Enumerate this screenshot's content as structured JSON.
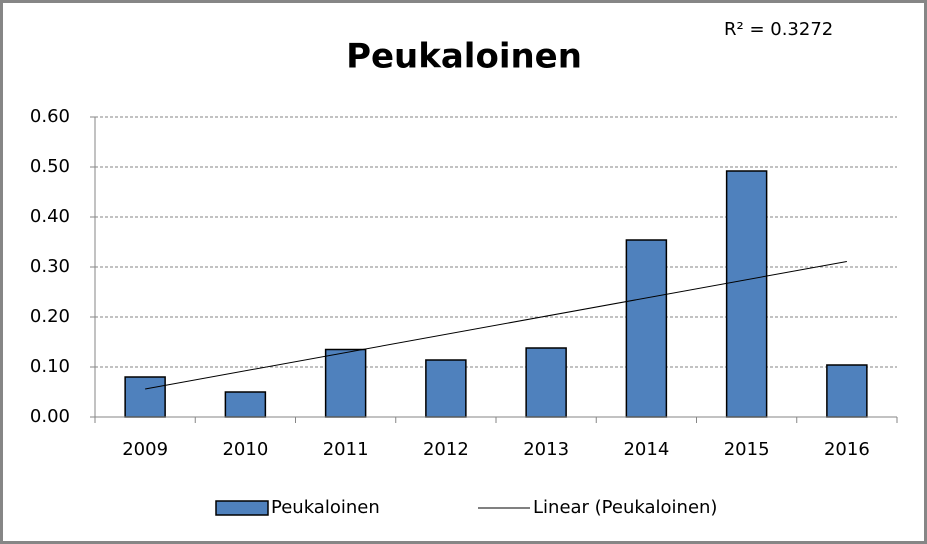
{
  "chart_data": {
    "type": "bar",
    "title": "Peukaloinen",
    "categories": [
      "2009",
      "2010",
      "2011",
      "2012",
      "2013",
      "2014",
      "2015",
      "2016"
    ],
    "series": [
      {
        "name": "Peukaloinen",
        "color": "#4f81bd",
        "values": [
          0.08,
          0.05,
          0.135,
          0.114,
          0.138,
          0.354,
          0.492,
          0.104
        ]
      }
    ],
    "trendline": {
      "name": "Linear (Peukaloinen)",
      "color": "#000000",
      "values": [
        0.056,
        0.311
      ],
      "annotation": "R² = 0.3272"
    },
    "ylim": [
      0,
      0.6
    ],
    "yticks": [
      {
        "value": 0,
        "label": "0.00"
      },
      {
        "value": 0.1,
        "label": "0.10"
      },
      {
        "value": 0.2,
        "label": "0.20"
      },
      {
        "value": 0.3,
        "label": "0.30"
      },
      {
        "value": 0.4,
        "label": "0.40"
      },
      {
        "value": 0.5,
        "label": "0.50"
      },
      {
        "value": 0.6,
        "label": "0.60"
      }
    ],
    "grid": true,
    "legend": "bottom"
  }
}
